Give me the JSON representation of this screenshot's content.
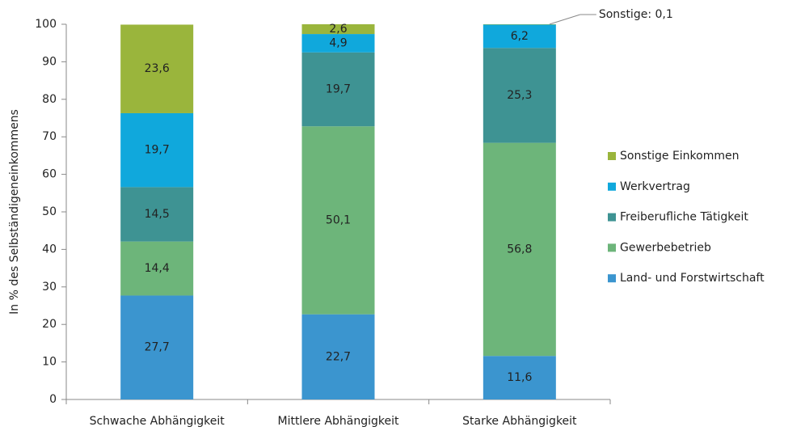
{
  "chart_data": {
    "type": "stacked_bar",
    "ylabel": "In % des Selbständigeneinkommens",
    "categories": [
      "Schwache Abhängigkeit",
      "Mittlere Abhängigkeit",
      "Starke Abhängigkeit"
    ],
    "series": [
      {
        "name": "Land- und Forstwirtschaft",
        "color": "#3b95cf",
        "values": [
          27.7,
          22.7,
          11.6
        ],
        "value_labels": [
          "27,7",
          "22,7",
          "11,6"
        ]
      },
      {
        "name": "Gewerbebetrieb",
        "color": "#6db57a",
        "values": [
          14.4,
          50.1,
          56.8
        ],
        "value_labels": [
          "14,4",
          "50,1",
          "56,8"
        ]
      },
      {
        "name": "Freiberufliche Tätigkeit",
        "color": "#3e9393",
        "values": [
          14.5,
          19.7,
          25.3
        ],
        "value_labels": [
          "14,5",
          "19,7",
          "25,3"
        ]
      },
      {
        "name": "Werkvertrag",
        "color": "#10a8dc",
        "values": [
          19.7,
          4.9,
          6.2
        ],
        "value_labels": [
          "19,7",
          "4,9",
          "6,2"
        ]
      },
      {
        "name": "Sonstige Einkommen",
        "color": "#9ab53c",
        "values": [
          23.6,
          2.6,
          0.1
        ],
        "value_labels": [
          "23,6",
          "2,6",
          "Sonstige: 0,1"
        ]
      }
    ],
    "ylim": [
      0,
      100
    ],
    "yticks": [
      0,
      10,
      20,
      30,
      40,
      50,
      60,
      70,
      80,
      90,
      100
    ],
    "legend": "right"
  }
}
